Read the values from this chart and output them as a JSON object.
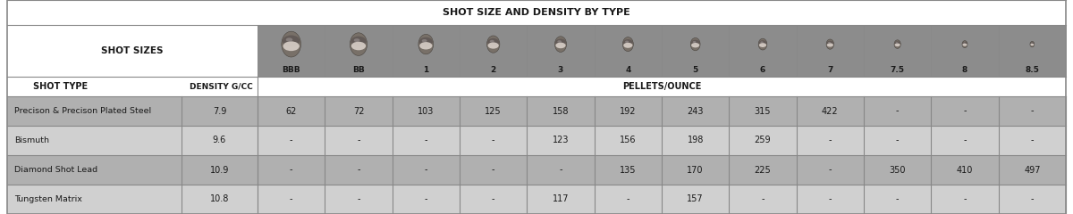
{
  "title": "SHOT SIZE AND DENSITY BY TYPE",
  "title_bg": "#ffffff",
  "shot_row_bg": "#8c8c8c",
  "subheader_bg": "#ffffff",
  "border_color": "#888888",
  "text_color": "#1a1a1a",
  "shot_sizes_label": "SHOT SIZES",
  "shot_labels": [
    "BBB",
    "BB",
    "1",
    "2",
    "3",
    "4",
    "5",
    "6",
    "7",
    "7.5",
    "8",
    "8.5"
  ],
  "col1_header": "SHOT TYPE",
  "col2_header": "DENSITY G/CC",
  "pellets_header": "PELLETS/OUNCE",
  "rows": [
    {
      "name": "Precison & Precison Plated Steel",
      "density": "7.9",
      "values": [
        "62",
        "72",
        "103",
        "125",
        "158",
        "192",
        "243",
        "315",
        "422",
        "-",
        "-",
        "-"
      ],
      "bg": "#b0b0b0"
    },
    {
      "name": "Bismuth",
      "density": "9.6",
      "values": [
        "-",
        "-",
        "-",
        "-",
        "123",
        "156",
        "198",
        "259",
        "-",
        "-",
        "-",
        "-"
      ],
      "bg": "#d0d0d0"
    },
    {
      "name": "Diamond Shot Lead",
      "density": "10.9",
      "values": [
        "-",
        "-",
        "-",
        "-",
        "-",
        "135",
        "170",
        "225",
        "-",
        "350",
        "410",
        "497"
      ],
      "bg": "#b0b0b0"
    },
    {
      "name": "Tungsten Matrix",
      "density": "10.8",
      "values": [
        "-",
        "-",
        "-",
        "-",
        "117",
        "-",
        "157",
        "-",
        "-",
        "-",
        "-",
        "-"
      ],
      "bg": "#d0d0d0"
    }
  ],
  "shot_ball_sizes": [
    18,
    16,
    14,
    12,
    11,
    10,
    9,
    8,
    7,
    6,
    5,
    4
  ],
  "figsize": [
    12.0,
    2.4
  ],
  "dpi": 100
}
